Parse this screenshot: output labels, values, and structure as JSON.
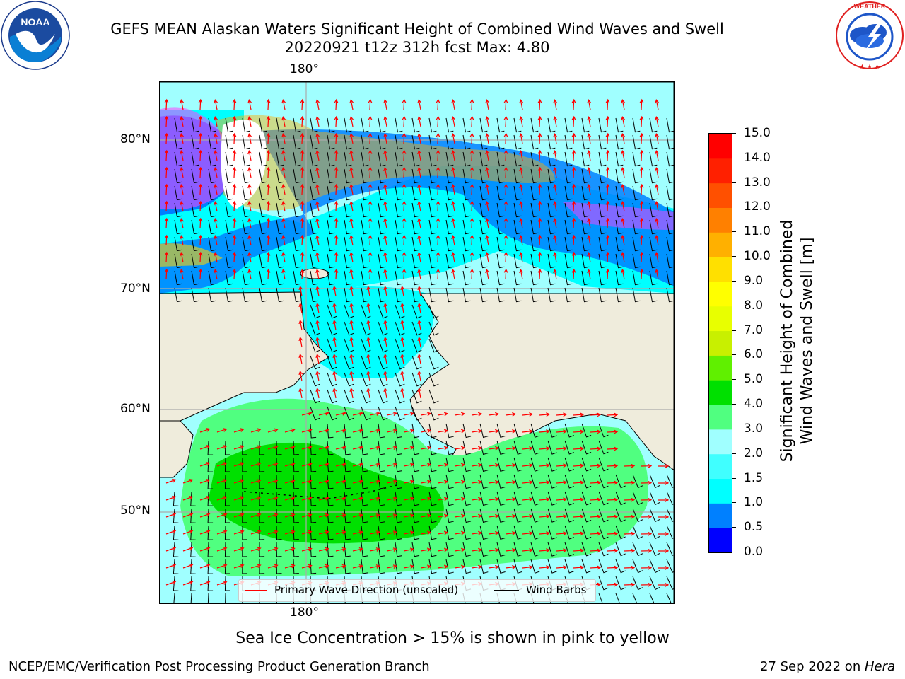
{
  "title": {
    "line1": "GEFS MEAN Alaskan Waters Significant Height of Combined Wind Waves and Swell",
    "line2": "20220921 t12z 312h fcst   Max: 4.80"
  },
  "logos": {
    "left": {
      "text": "NOAA",
      "ring_top": "NATIONAL OCEANIC AND ATMOSPHERIC ADMINISTRATION",
      "ring_bottom": "U.S. DEPARTMENT OF COMMERCE"
    },
    "right": {
      "ring_top": "NATIONAL WEATHER SERVICE"
    }
  },
  "map": {
    "lon_label_top": "180°",
    "lon_label_bottom": "180°",
    "lat_labels": [
      "80°N",
      "70°N",
      "60°N",
      "50°N"
    ],
    "legend": {
      "wave": "Primary Wave Direction (unscaled)",
      "wind": "Wind Barbs"
    },
    "colors": {
      "land": "#efecdc",
      "wave_arrow": "#ff0000",
      "wind_barb": "#000000"
    }
  },
  "colorbar": {
    "label_line1": "Significant Height of Combined",
    "label_line2": "Wind Waves and Swell [m]",
    "ticks": [
      "15.0",
      "14.0",
      "13.0",
      "12.0",
      "11.0",
      "10.0",
      "9.0",
      "8.0",
      "7.0",
      "6.0",
      "5.0",
      "4.0",
      "3.0",
      "2.0",
      "1.5",
      "1.0",
      "0.5",
      "0.0"
    ],
    "colors_bottom_to_top": [
      "#0000ff",
      "#0080ff",
      "#00ffff",
      "#40ffff",
      "#a0ffff",
      "#50ff80",
      "#00e000",
      "#60f000",
      "#c8f000",
      "#e8ff00",
      "#ffff00",
      "#ffe000",
      "#ffb000",
      "#ff8000",
      "#ff5000",
      "#ff2000",
      "#ff0000"
    ]
  },
  "caption": "Sea Ice Concentration > 15% is shown in pink to yellow",
  "footer": {
    "left": "NCEP/EMC/Verification Post Processing Product Generation Branch",
    "right_prefix": "27 Sep 2022 on ",
    "right_italic": "Hera"
  }
}
